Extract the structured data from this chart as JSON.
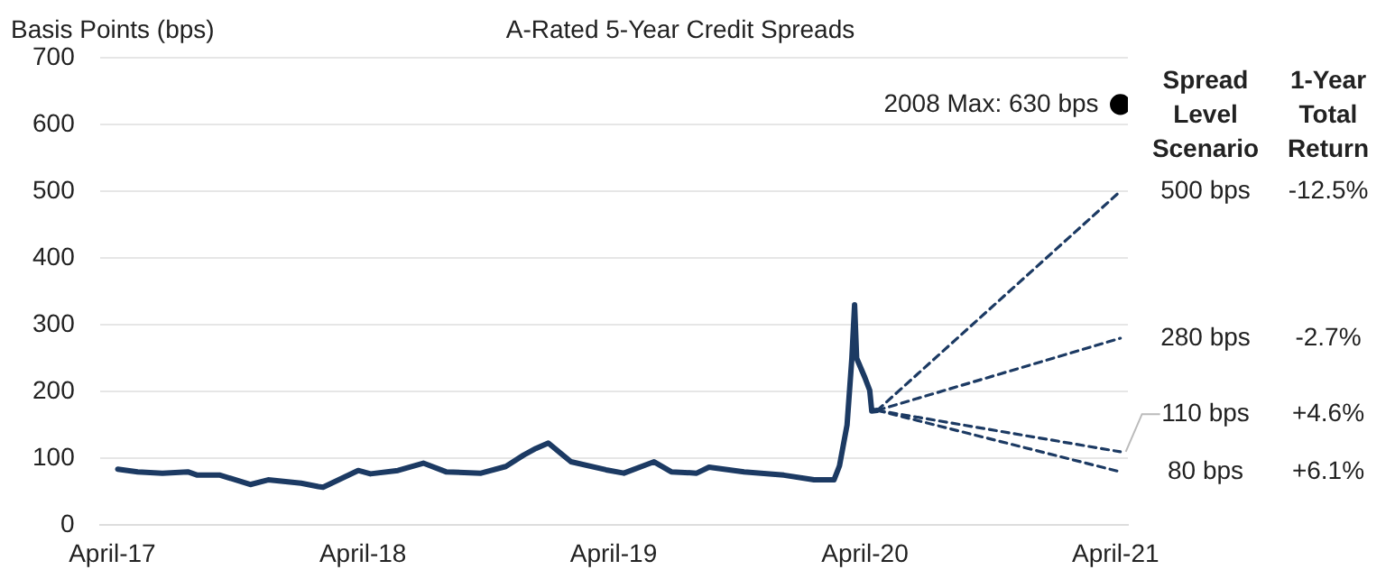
{
  "chart_data": {
    "type": "line",
    "title": "A-Rated 5-Year Credit Spreads",
    "ylabel": "Basis Points (bps)",
    "xlim": [
      "2017-03-14",
      "2021-04-19"
    ],
    "xticks": [
      {
        "value": "2017-04-01",
        "label": "April-17"
      },
      {
        "value": "2018-04-01",
        "label": "April-18"
      },
      {
        "value": "2019-04-01",
        "label": "April-19"
      },
      {
        "value": "2020-04-01",
        "label": "April-20"
      },
      {
        "value": "2021-04-01",
        "label": "April-21"
      }
    ],
    "ylim": [
      0,
      700
    ],
    "yticks": [
      0,
      100,
      200,
      300,
      400,
      500,
      600,
      700
    ],
    "grid": "y",
    "legend": false,
    "series": [
      {
        "color": "#1c3a63",
        "line_style": "solid",
        "marker": "none",
        "x": [
          "2017-04-09",
          "2017-05-08",
          "2017-06-13",
          "2017-07-20",
          "2017-08-03",
          "2017-09-05",
          "2017-10-19",
          "2017-11-14",
          "2018-01-01",
          "2018-01-26",
          "2018-02-02",
          "2018-03-25",
          "2018-04-12",
          "2018-05-22",
          "2018-06-28",
          "2018-07-31",
          "2018-09-20",
          "2018-10-26",
          "2018-11-21",
          "2018-12-09",
          "2018-12-27",
          "2019-01-29",
          "2019-03-21",
          "2019-04-16",
          "2019-05-30",
          "2019-06-24",
          "2019-07-31",
          "2019-08-18",
          "2019-10-08",
          "2019-12-05",
          "2020-01-18",
          "2020-02-16",
          "2020-02-24",
          "2020-03-06",
          "2020-03-13",
          "2020-03-17",
          "2020-03-20",
          "2020-04-01",
          "2020-04-08",
          "2020-04-11",
          "2020-04-19"
        ],
        "values": [
          84,
          80,
          78,
          80,
          75,
          75,
          61,
          68,
          63,
          58,
          57,
          82,
          77,
          82,
          93,
          80,
          78,
          88,
          105,
          115,
          123,
          95,
          83,
          78,
          95,
          80,
          78,
          87,
          80,
          75,
          68,
          68,
          89,
          150,
          250,
          330,
          250,
          221,
          202,
          171,
          172
        ]
      },
      {
        "color": "#1c3a63",
        "line_style": "dashed",
        "marker": "none",
        "x": [
          "2020-04-19",
          "2021-04-08"
        ],
        "values": [
          172,
          500
        ],
        "value_labels": [
          null,
          "500 bps"
        ]
      },
      {
        "color": "#1c3a63",
        "line_style": "dashed",
        "marker": "none",
        "x": [
          "2020-04-19",
          "2021-04-08"
        ],
        "values": [
          172,
          280
        ],
        "value_labels": [
          null,
          "280 bps"
        ]
      },
      {
        "color": "#1c3a63",
        "line_style": "dashed",
        "marker": "none",
        "x": [
          "2020-04-19",
          "2021-04-08"
        ],
        "values": [
          172,
          110
        ],
        "value_labels": [
          null,
          "110 bps"
        ]
      },
      {
        "color": "#1c3a63",
        "line_style": "dashed",
        "marker": "none",
        "x": [
          "2020-04-19",
          "2021-04-08"
        ],
        "values": [
          172,
          80
        ],
        "value_labels": [
          null,
          "80 bps"
        ]
      },
      {
        "type": "scatter",
        "color": "#000000",
        "marker": "circle",
        "x": [
          "2021-04-08"
        ],
        "values": [
          630
        ],
        "value_labels": [
          "2008 Max: 630 bps"
        ]
      }
    ],
    "annotations": [
      "Spread Level Scenario",
      "1-Year Total Return",
      "-12.5%",
      "-2.7%",
      "+4.6%",
      "+6.1%"
    ]
  }
}
